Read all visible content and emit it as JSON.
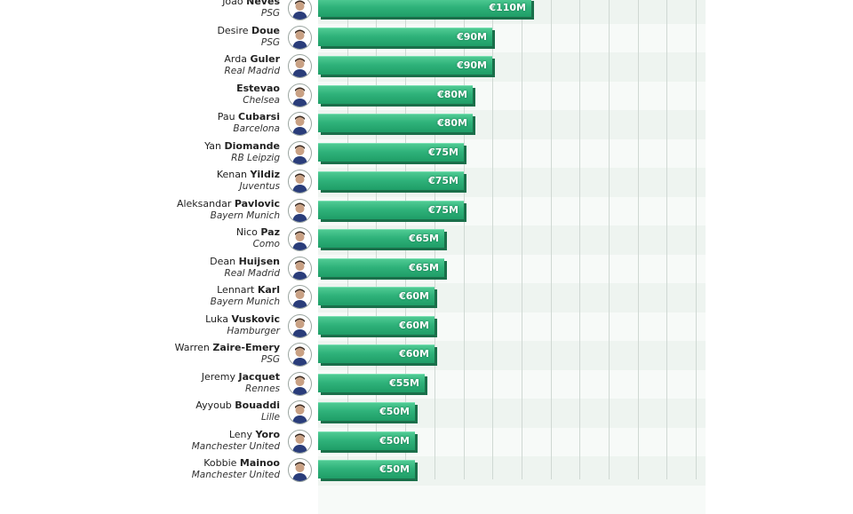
{
  "chart_data": {
    "type": "bar",
    "orientation": "horizontal",
    "xlim": [
      0,
      200
    ],
    "grid": true,
    "players": [
      {
        "first": "Joao",
        "last": "Neves",
        "club": "PSG",
        "value": 110,
        "label": "€110M"
      },
      {
        "first": "Desire",
        "last": "Doue",
        "club": "PSG",
        "value": 90,
        "label": "€90M"
      },
      {
        "first": "Arda",
        "last": "Guler",
        "club": "Real Madrid",
        "value": 90,
        "label": "€90M"
      },
      {
        "first": "",
        "last": "Estevao",
        "club": "Chelsea",
        "value": 80,
        "label": "€80M"
      },
      {
        "first": "Pau",
        "last": "Cubarsi",
        "club": "Barcelona",
        "value": 80,
        "label": "€80M"
      },
      {
        "first": "Yan",
        "last": "Diomande",
        "club": "RB Leipzig",
        "value": 75,
        "label": "€75M"
      },
      {
        "first": "Kenan",
        "last": "Yildiz",
        "club": "Juventus",
        "value": 75,
        "label": "€75M"
      },
      {
        "first": "Aleksandar",
        "last": "Pavlovic",
        "club": "Bayern Munich",
        "value": 75,
        "label": "€75M"
      },
      {
        "first": "Nico",
        "last": "Paz",
        "club": "Como",
        "value": 65,
        "label": "€65M"
      },
      {
        "first": "Dean",
        "last": "Huijsen",
        "club": "Real Madrid",
        "value": 65,
        "label": "€65M"
      },
      {
        "first": "Lennart",
        "last": "Karl",
        "club": "Bayern Munich",
        "value": 60,
        "label": "€60M"
      },
      {
        "first": "Luka",
        "last": "Vuskovic",
        "club": "Hamburger",
        "value": 60,
        "label": "€60M"
      },
      {
        "first": "Warren",
        "last": "Zaire-Emery",
        "club": "PSG",
        "value": 60,
        "label": "€60M"
      },
      {
        "first": "Jeremy",
        "last": "Jacquet",
        "club": "Rennes",
        "value": 55,
        "label": "€55M"
      },
      {
        "first": "Ayyoub",
        "last": "Bouaddi",
        "club": "Lille",
        "value": 50,
        "label": "€50M"
      },
      {
        "first": "Leny",
        "last": "Yoro",
        "club": "Manchester United",
        "value": 50,
        "label": "€50M"
      },
      {
        "first": "Kobbie",
        "last": "Mainoo",
        "club": "Manchester United",
        "value": 50,
        "label": "€50M"
      }
    ]
  }
}
